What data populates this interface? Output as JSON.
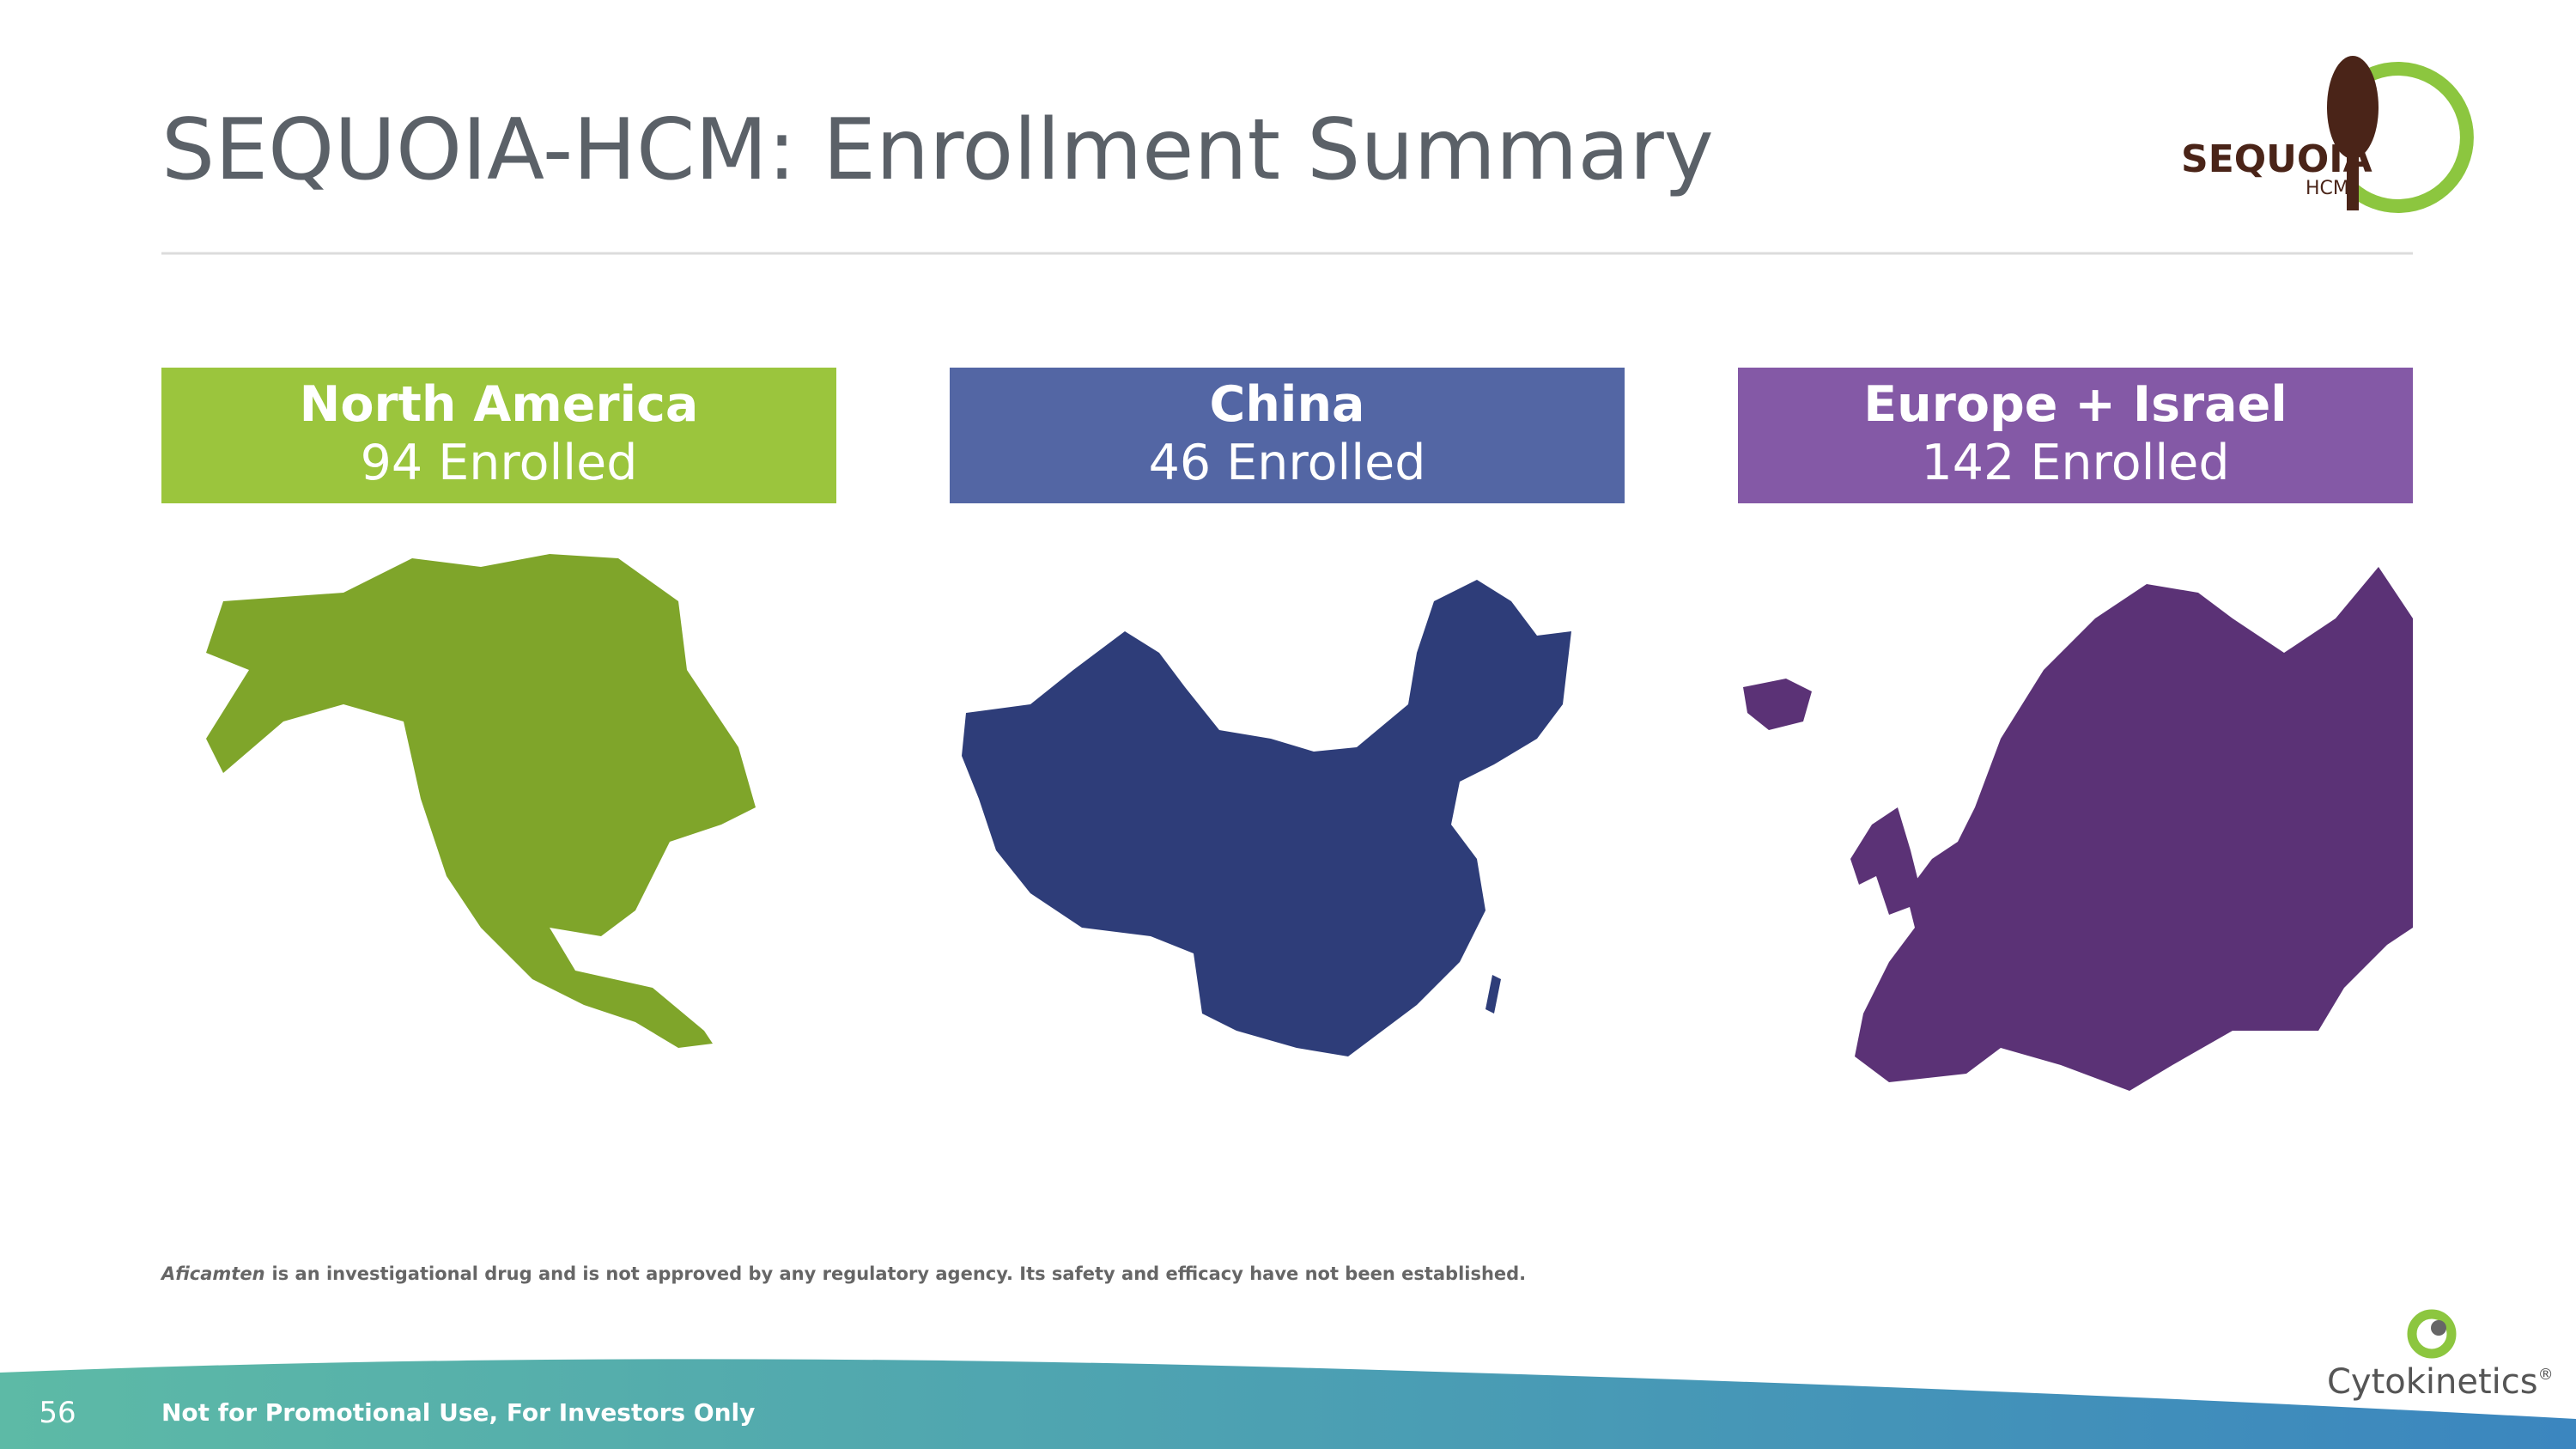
{
  "header": {
    "title": "SEQUOIA-HCM: Enrollment Summary",
    "logo": {
      "name": "SEQUOIA",
      "sub": "HCM"
    }
  },
  "regions": [
    {
      "name": "North America",
      "enrolled": "94 Enrolled"
    },
    {
      "name": "China",
      "enrolled": "46 Enrolled"
    },
    {
      "name": "Europe + Israel",
      "enrolled": "142 Enrolled"
    }
  ],
  "disclaimer": {
    "drug": "Aficamten",
    "text": "is an investigational drug and is not approved by any regulatory agency. Its safety and efficacy have not been established."
  },
  "footer": {
    "page": "56",
    "note": "Not for Promotional Use, For Investors Only",
    "company": "Cytokinetics",
    "mark": "®"
  }
}
